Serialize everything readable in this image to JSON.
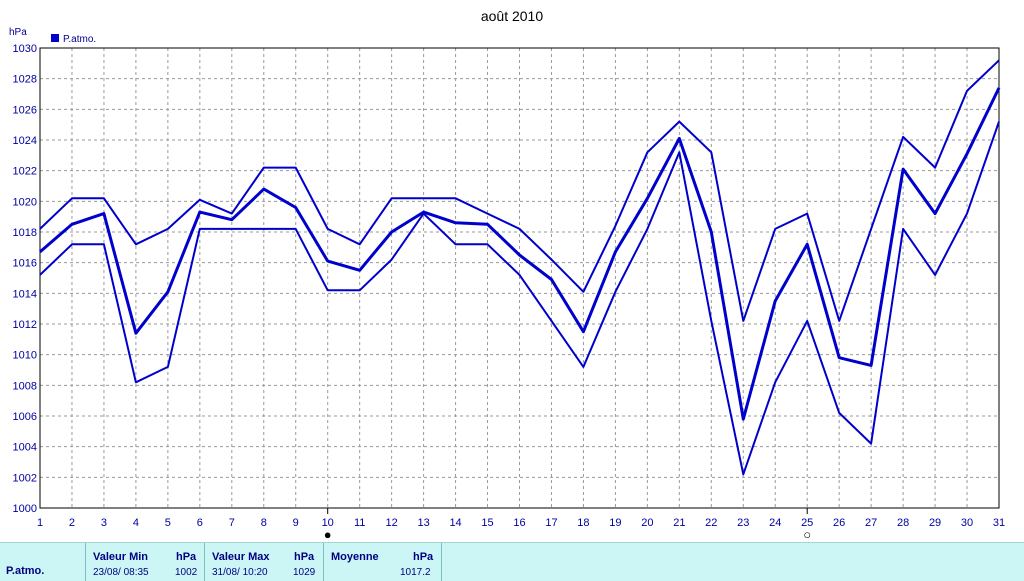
{
  "chart_data": {
    "type": "line",
    "title": "août 2010",
    "ylabel": "hPa",
    "legend": {
      "label": "P.atmo.",
      "color": "#0000cc",
      "placement": "top-left"
    },
    "ylim": [
      1000,
      1030
    ],
    "yticks": [
      1000,
      1002,
      1004,
      1006,
      1008,
      1010,
      1012,
      1014,
      1016,
      1018,
      1020,
      1022,
      1024,
      1026,
      1028,
      1030
    ],
    "x": [
      1,
      2,
      3,
      4,
      5,
      6,
      7,
      8,
      9,
      10,
      11,
      12,
      13,
      14,
      15,
      16,
      17,
      18,
      19,
      20,
      21,
      22,
      23,
      24,
      25,
      26,
      27,
      28,
      29,
      30,
      31
    ],
    "grid": true,
    "series": [
      {
        "name": "P.atmo.",
        "values": [
          1018.2,
          1020.2,
          1020.2,
          1017.2,
          1018.2,
          1020.1,
          1019.2,
          1022.2,
          1022.2,
          1018.2,
          1017.2,
          1020.2,
          1020.2,
          1020.2,
          1019.2,
          1018.2,
          1016.2,
          1014.1,
          1018.4,
          1023.2,
          1025.2,
          1023.2,
          1012.2,
          1018.2,
          1019.2,
          1012.2,
          1018.2,
          1024.2,
          1022.2,
          1027.2,
          1029.2
        ]
      },
      {
        "name": "P.atmo.",
        "values": [
          1016.7,
          1018.5,
          1019.2,
          1011.4,
          1014.1,
          1019.3,
          1018.8,
          1020.8,
          1019.6,
          1016.1,
          1015.5,
          1018.0,
          1019.3,
          1018.6,
          1018.5,
          1016.5,
          1014.9,
          1011.5,
          1016.7,
          1020.2,
          1024.1,
          1018.0,
          1005.8,
          1013.5,
          1017.2,
          1009.8,
          1009.3,
          1022.1,
          1019.2,
          1023.1,
          1027.4
        ]
      },
      {
        "name": "P.atmo.",
        "values": [
          1015.2,
          1017.2,
          1017.2,
          1008.2,
          1009.2,
          1018.2,
          1018.2,
          1018.2,
          1018.2,
          1014.2,
          1014.2,
          1016.2,
          1019.2,
          1017.2,
          1017.2,
          1015.2,
          1012.2,
          1009.2,
          1014.1,
          1018.2,
          1023.2,
          1012.2,
          1002.2,
          1008.2,
          1012.2,
          1006.2,
          1004.2,
          1018.2,
          1015.2,
          1019.2,
          1025.2
        ]
      }
    ],
    "moon_markers": [
      {
        "day": 10,
        "symbol": "●"
      },
      {
        "day": 25,
        "symbol": "○"
      }
    ]
  },
  "stats": {
    "row_label": "P.atmo.",
    "min": {
      "header": "Valeur Min",
      "unit": "hPa",
      "datetime": "23/08/  08:35",
      "value": "1002"
    },
    "max": {
      "header": "Valeur Max",
      "unit": "hPa",
      "datetime": "31/08/  10:20",
      "value": "1029"
    },
    "avg": {
      "header": "Moyenne",
      "unit": "hPa",
      "value": "1017.2"
    }
  }
}
